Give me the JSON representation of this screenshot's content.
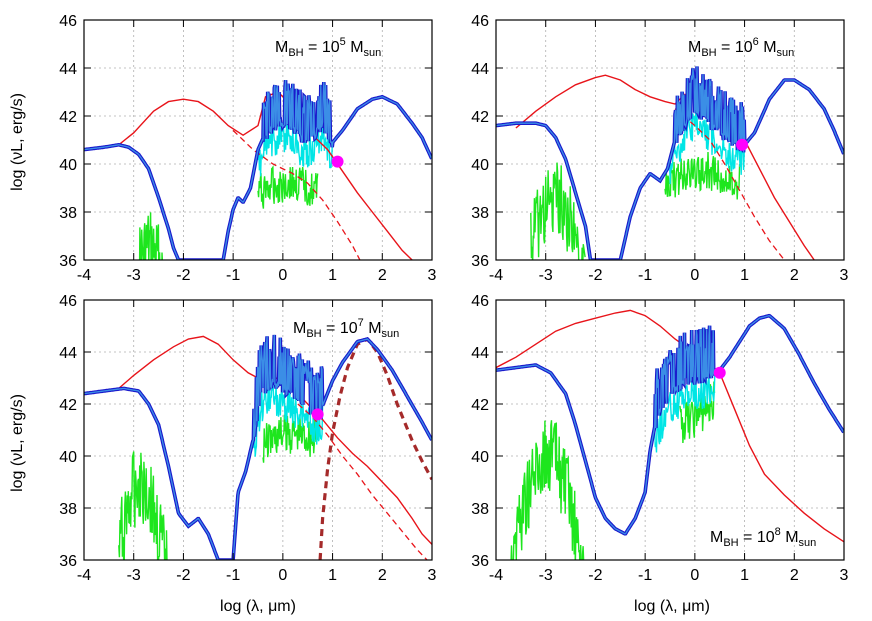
{
  "figure": {
    "ylabel": "log (νL, erg/s)",
    "xlabel": "log (λ, μm)"
  },
  "chart_data": [
    {
      "type": "line",
      "annotation": {
        "base": "M",
        "sub": "BH",
        "mid": " = 10",
        "sup": "5",
        "tail": " M",
        "sub2": "sun"
      },
      "xlim": [
        -4,
        3
      ],
      "ylim": [
        36,
        46
      ],
      "xticks": [
        -4,
        -3,
        -2,
        -1,
        0,
        1,
        2,
        3
      ],
      "yticks": [
        36,
        38,
        40,
        42,
        44,
        46
      ],
      "grid": true,
      "colors": {
        "total_dark": "#1a1acc",
        "total_light": "#3b8ee6",
        "cyan": "#00e5e5",
        "green": "#1ee61e",
        "red": "#e8141a",
        "magenta": "#ff00ff"
      },
      "red_solid": [
        [
          -3.3,
          40.8
        ],
        [
          -3.0,
          41.3
        ],
        [
          -2.6,
          42.2
        ],
        [
          -2.3,
          42.6
        ],
        [
          -2.0,
          42.7
        ],
        [
          -1.7,
          42.6
        ],
        [
          -1.4,
          42.2
        ],
        [
          -1.1,
          41.6
        ],
        [
          -0.8,
          41.2
        ],
        [
          -0.5,
          41.6
        ],
        [
          -0.35,
          42.8
        ],
        [
          -0.1,
          43.0
        ],
        [
          0.1,
          42.6
        ],
        [
          0.3,
          41.9
        ],
        [
          0.6,
          41.2
        ],
        [
          0.9,
          40.6
        ],
        [
          1.2,
          39.7
        ],
        [
          1.5,
          38.8
        ],
        [
          1.8,
          38.0
        ],
        [
          2.1,
          37.2
        ],
        [
          2.4,
          36.4
        ],
        [
          2.6,
          36.0
        ]
      ],
      "red_dashed": [
        [
          -1.0,
          41.4
        ],
        [
          -0.6,
          40.6
        ],
        [
          -0.2,
          40.0
        ],
        [
          0.2,
          39.6
        ],
        [
          0.5,
          39.2
        ],
        [
          0.8,
          38.5
        ],
        [
          1.1,
          37.6
        ],
        [
          1.4,
          36.6
        ],
        [
          1.55,
          36.0
        ]
      ],
      "total": [
        [
          -4.0,
          40.6
        ],
        [
          -3.6,
          40.7
        ],
        [
          -3.3,
          40.8
        ],
        [
          -3.1,
          40.7
        ],
        [
          -2.9,
          40.4
        ],
        [
          -2.7,
          39.8
        ],
        [
          -2.5,
          38.6
        ],
        [
          -2.3,
          37.3
        ],
        [
          -2.2,
          36.5
        ],
        [
          -2.1,
          36.0
        ],
        [
          -1.2,
          36.0
        ],
        [
          -1.1,
          37.2
        ],
        [
          -1.0,
          38.1
        ],
        [
          -0.9,
          38.6
        ],
        [
          -0.8,
          38.4
        ],
        [
          -0.65,
          39.0
        ],
        [
          -0.5,
          40.6
        ],
        [
          -0.35,
          41.3
        ],
        [
          -0.2,
          41.7
        ],
        [
          0.0,
          41.9
        ],
        [
          0.2,
          41.7
        ],
        [
          0.4,
          41.2
        ],
        [
          0.6,
          41.3
        ],
        [
          0.8,
          41.8
        ],
        [
          1.0,
          40.9
        ],
        [
          1.2,
          41.4
        ],
        [
          1.5,
          42.3
        ],
        [
          1.8,
          42.7
        ],
        [
          2.0,
          42.8
        ],
        [
          2.3,
          42.5
        ],
        [
          2.6,
          41.7
        ],
        [
          2.8,
          41.1
        ],
        [
          3.0,
          40.2
        ]
      ],
      "total_spiky_range": [
        -0.4,
        1.0
      ],
      "cyan_spiky_range": [
        -0.5,
        1.0
      ],
      "green": [
        [
          -2.9,
          37.5
        ],
        [
          -2.7,
          38.2
        ],
        [
          -2.5,
          37.6
        ],
        [
          -2.4,
          37.0
        ],
        [
          -2.35,
          36.0
        ]
      ],
      "green_spiky_range": [
        -3.1,
        -2.35
      ],
      "green_hump": [
        [
          -0.5,
          39.6
        ],
        [
          -0.2,
          39.9
        ],
        [
          0.1,
          40.0
        ],
        [
          0.4,
          39.9
        ],
        [
          0.7,
          39.6
        ]
      ],
      "dot": [
        1.1,
        40.1
      ]
    },
    {
      "type": "line",
      "annotation": {
        "base": "M",
        "sub": "BH",
        "mid": " = 10",
        "sup": "6",
        "tail": " M",
        "sub2": "sun"
      },
      "xlim": [
        -4,
        3
      ],
      "ylim": [
        36,
        46
      ],
      "xticks": [
        -4,
        -3,
        -2,
        -1,
        0,
        1,
        2,
        3
      ],
      "yticks": [
        36,
        38,
        40,
        42,
        44,
        46
      ],
      "grid": true,
      "colors": {
        "total_dark": "#1a1acc",
        "total_light": "#3b8ee6",
        "cyan": "#00e5e5",
        "green": "#1ee61e",
        "red": "#e8141a",
        "magenta": "#ff00ff"
      },
      "red_solid": [
        [
          -3.6,
          41.5
        ],
        [
          -3.2,
          42.2
        ],
        [
          -2.8,
          42.8
        ],
        [
          -2.4,
          43.3
        ],
        [
          -2.0,
          43.6
        ],
        [
          -1.8,
          43.7
        ],
        [
          -1.5,
          43.5
        ],
        [
          -1.2,
          43.1
        ],
        [
          -0.9,
          42.8
        ],
        [
          -0.6,
          42.6
        ],
        [
          -0.4,
          42.5
        ],
        [
          -0.2,
          42.9
        ],
        [
          0.0,
          42.7
        ],
        [
          0.3,
          42.3
        ],
        [
          0.6,
          41.8
        ],
        [
          1.0,
          41.0
        ],
        [
          1.3,
          39.8
        ],
        [
          1.6,
          38.6
        ],
        [
          1.9,
          37.6
        ],
        [
          2.2,
          36.6
        ],
        [
          2.4,
          36.0
        ]
      ],
      "red_dashed": [
        [
          -0.4,
          42.3
        ],
        [
          0.0,
          41.6
        ],
        [
          0.3,
          41.0
        ],
        [
          0.6,
          40.0
        ],
        [
          0.9,
          38.9
        ],
        [
          1.2,
          37.8
        ],
        [
          1.5,
          36.8
        ],
        [
          1.8,
          36.0
        ]
      ],
      "total": [
        [
          -4.0,
          41.6
        ],
        [
          -3.6,
          41.7
        ],
        [
          -3.2,
          41.7
        ],
        [
          -3.0,
          41.6
        ],
        [
          -2.8,
          41.1
        ],
        [
          -2.6,
          40.2
        ],
        [
          -2.4,
          38.8
        ],
        [
          -2.2,
          37.4
        ],
        [
          -2.1,
          36.0
        ],
        [
          -1.5,
          36.0
        ],
        [
          -1.3,
          37.8
        ],
        [
          -1.1,
          39.0
        ],
        [
          -0.9,
          39.6
        ],
        [
          -0.7,
          39.3
        ],
        [
          -0.55,
          39.8
        ],
        [
          -0.4,
          41.0
        ],
        [
          -0.2,
          41.9
        ],
        [
          0.0,
          42.4
        ],
        [
          0.3,
          41.8
        ],
        [
          0.6,
          41.3
        ],
        [
          0.8,
          41.0
        ],
        [
          1.0,
          40.8
        ],
        [
          1.2,
          41.3
        ],
        [
          1.5,
          42.7
        ],
        [
          1.8,
          43.5
        ],
        [
          2.0,
          43.5
        ],
        [
          2.3,
          43.1
        ],
        [
          2.6,
          42.3
        ],
        [
          2.8,
          41.4
        ],
        [
          3.0,
          40.4
        ]
      ],
      "total_spiky_range": [
        -0.4,
        1.0
      ],
      "cyan_spiky_range": [
        -0.5,
        1.0
      ],
      "green": [
        [
          -3.3,
          38.5
        ],
        [
          -3.0,
          39.8
        ],
        [
          -2.7,
          40.2
        ],
        [
          -2.5,
          39.2
        ],
        [
          -2.3,
          37.5
        ],
        [
          -2.2,
          36.0
        ]
      ],
      "green_spiky_range": [
        -3.3,
        -2.25
      ],
      "green_hump": [
        [
          -0.6,
          40.0
        ],
        [
          -0.3,
          40.3
        ],
        [
          0.0,
          40.5
        ],
        [
          0.3,
          40.5
        ],
        [
          0.6,
          40.3
        ],
        [
          0.9,
          40.0
        ]
      ],
      "dot": [
        0.95,
        40.8
      ]
    },
    {
      "type": "line",
      "annotation": {
        "base": "M",
        "sub": "BH",
        "mid": " = 10",
        "sup": "7",
        "tail": " M",
        "sub2": "sun"
      },
      "xlim": [
        -4,
        3
      ],
      "ylim": [
        36,
        46
      ],
      "xticks": [
        -4,
        -3,
        -2,
        -1,
        0,
        1,
        2,
        3
      ],
      "yticks": [
        36,
        38,
        40,
        42,
        44,
        46
      ],
      "grid": true,
      "colors": {
        "total_dark": "#1a1acc",
        "total_light": "#3b8ee6",
        "cyan": "#00e5e5",
        "green": "#1ee61e",
        "red": "#e8141a",
        "magenta": "#ff00ff",
        "brown": "#a52a2a"
      },
      "red_solid": [
        [
          -3.3,
          42.6
        ],
        [
          -3.0,
          43.1
        ],
        [
          -2.6,
          43.7
        ],
        [
          -2.2,
          44.2
        ],
        [
          -1.9,
          44.5
        ],
        [
          -1.6,
          44.6
        ],
        [
          -1.3,
          44.3
        ],
        [
          -1.0,
          43.7
        ],
        [
          -0.7,
          43.2
        ],
        [
          -0.4,
          42.9
        ],
        [
          -0.1,
          43.0
        ],
        [
          0.2,
          42.6
        ],
        [
          0.5,
          42.0
        ],
        [
          0.8,
          41.4
        ],
        [
          1.1,
          40.7
        ],
        [
          1.4,
          40.1
        ],
        [
          1.7,
          39.6
        ],
        [
          2.0,
          39.0
        ],
        [
          2.3,
          38.4
        ],
        [
          2.6,
          37.6
        ],
        [
          2.8,
          37.0
        ],
        [
          3.0,
          36.6
        ]
      ],
      "red_dashed": [
        [
          0.3,
          42.0
        ],
        [
          0.6,
          41.5
        ],
        [
          0.9,
          40.8
        ],
        [
          1.2,
          40.0
        ],
        [
          1.5,
          39.3
        ],
        [
          1.8,
          38.5
        ],
        [
          2.1,
          37.8
        ],
        [
          2.4,
          37.1
        ],
        [
          2.7,
          36.4
        ],
        [
          2.9,
          36.0
        ]
      ],
      "brown_dashed": [
        [
          0.75,
          36.0
        ],
        [
          0.8,
          37.6
        ],
        [
          0.9,
          39.5
        ],
        [
          1.0,
          40.9
        ],
        [
          1.15,
          42.3
        ],
        [
          1.3,
          43.4
        ],
        [
          1.5,
          44.3
        ],
        [
          1.7,
          44.5
        ],
        [
          1.9,
          44.0
        ],
        [
          2.1,
          43.1
        ],
        [
          2.3,
          42.0
        ],
        [
          2.6,
          40.6
        ],
        [
          2.8,
          39.8
        ],
        [
          3.0,
          39.1
        ]
      ],
      "total": [
        [
          -4.0,
          42.4
        ],
        [
          -3.6,
          42.5
        ],
        [
          -3.2,
          42.6
        ],
        [
          -2.9,
          42.5
        ],
        [
          -2.7,
          42.0
        ],
        [
          -2.5,
          41.2
        ],
        [
          -2.3,
          39.6
        ],
        [
          -2.1,
          37.8
        ],
        [
          -1.9,
          37.3
        ],
        [
          -1.7,
          37.6
        ],
        [
          -1.5,
          37.0
        ],
        [
          -1.3,
          36.0
        ],
        [
          -1.0,
          36.0
        ],
        [
          -0.9,
          38.6
        ],
        [
          -0.75,
          39.4
        ],
        [
          -0.6,
          40.6
        ],
        [
          -0.45,
          42.6
        ],
        [
          -0.2,
          43.0
        ],
        [
          0.0,
          42.8
        ],
        [
          0.3,
          42.3
        ],
        [
          0.6,
          41.8
        ],
        [
          0.75,
          41.7
        ],
        [
          1.0,
          42.9
        ],
        [
          1.2,
          43.6
        ],
        [
          1.5,
          44.4
        ],
        [
          1.7,
          44.5
        ],
        [
          1.9,
          44.1
        ],
        [
          2.2,
          43.3
        ],
        [
          2.5,
          42.3
        ],
        [
          2.8,
          41.3
        ],
        [
          3.0,
          40.6
        ]
      ],
      "total_spiky_range": [
        -0.6,
        0.8
      ],
      "cyan_spiky_range": [
        -0.6,
        0.8
      ],
      "green": [
        [
          -3.3,
          38.0
        ],
        [
          -3.1,
          39.7
        ],
        [
          -2.9,
          40.8
        ],
        [
          -2.7,
          40.2
        ],
        [
          -2.5,
          38.6
        ],
        [
          -2.3,
          37.0
        ],
        [
          -2.2,
          36.0
        ]
      ],
      "green_spiky_range": [
        -3.3,
        -2.2
      ],
      "green_hump": [
        [
          -0.4,
          41.3
        ],
        [
          -0.1,
          41.6
        ],
        [
          0.2,
          41.7
        ],
        [
          0.5,
          41.6
        ],
        [
          0.7,
          41.4
        ]
      ],
      "dot": [
        0.7,
        41.6
      ]
    },
    {
      "type": "line",
      "annotation": {
        "base": "M",
        "sub": "BH",
        "mid": " = 10",
        "sup": "8",
        "tail": " M",
        "sub2": "sun"
      },
      "xlim": [
        -4,
        3
      ],
      "ylim": [
        36,
        46
      ],
      "xticks": [
        -4,
        -3,
        -2,
        -1,
        0,
        1,
        2,
        3
      ],
      "yticks": [
        36,
        38,
        40,
        42,
        44,
        46
      ],
      "grid": true,
      "colors": {
        "total_dark": "#1a1acc",
        "total_light": "#3b8ee6",
        "cyan": "#00e5e5",
        "green": "#1ee61e",
        "red": "#e8141a",
        "magenta": "#ff00ff"
      },
      "red_solid": [
        [
          -4.0,
          43.4
        ],
        [
          -3.6,
          43.8
        ],
        [
          -3.2,
          44.3
        ],
        [
          -2.8,
          44.8
        ],
        [
          -2.4,
          45.1
        ],
        [
          -2.0,
          45.3
        ],
        [
          -1.6,
          45.5
        ],
        [
          -1.3,
          45.6
        ],
        [
          -1.0,
          45.4
        ],
        [
          -0.7,
          45.0
        ],
        [
          -0.4,
          44.5
        ],
        [
          -0.1,
          44.1
        ],
        [
          0.2,
          43.7
        ],
        [
          0.5,
          43.2
        ],
        [
          0.8,
          41.8
        ],
        [
          1.1,
          40.4
        ],
        [
          1.4,
          39.3
        ],
        [
          1.8,
          38.5
        ],
        [
          2.2,
          37.8
        ],
        [
          2.6,
          37.2
        ],
        [
          3.0,
          36.7
        ]
      ],
      "total": [
        [
          -4.0,
          43.3
        ],
        [
          -3.6,
          43.4
        ],
        [
          -3.2,
          43.5
        ],
        [
          -2.9,
          43.2
        ],
        [
          -2.6,
          42.4
        ],
        [
          -2.4,
          41.2
        ],
        [
          -2.2,
          39.8
        ],
        [
          -2.0,
          38.4
        ],
        [
          -1.8,
          37.6
        ],
        [
          -1.6,
          37.2
        ],
        [
          -1.4,
          37.0
        ],
        [
          -1.2,
          37.6
        ],
        [
          -1.0,
          38.6
        ],
        [
          -0.9,
          40.2
        ],
        [
          -0.75,
          41.7
        ],
        [
          -0.5,
          42.6
        ],
        [
          -0.2,
          43.0
        ],
        [
          0.1,
          43.1
        ],
        [
          0.3,
          43.3
        ],
        [
          0.5,
          43.3
        ],
        [
          0.7,
          43.8
        ],
        [
          0.9,
          44.4
        ],
        [
          1.1,
          45.0
        ],
        [
          1.3,
          45.3
        ],
        [
          1.5,
          45.4
        ],
        [
          1.8,
          44.9
        ],
        [
          2.1,
          43.9
        ],
        [
          2.4,
          42.8
        ],
        [
          2.7,
          41.8
        ],
        [
          3.0,
          40.9
        ]
      ],
      "total_spiky_range": [
        -0.8,
        0.4
      ],
      "cyan_spiky_range": [
        -0.8,
        0.4
      ],
      "green": [
        [
          -3.7,
          38.0
        ],
        [
          -3.4,
          40.0
        ],
        [
          -3.1,
          41.4
        ],
        [
          -2.9,
          41.8
        ],
        [
          -2.7,
          41.0
        ],
        [
          -2.5,
          39.6
        ],
        [
          -2.3,
          37.4
        ],
        [
          -2.15,
          36.0
        ]
      ],
      "green_spiky_range": [
        -3.8,
        -2.15
      ],
      "green_hump": [
        [
          -0.3,
          42.0
        ],
        [
          0.0,
          42.3
        ],
        [
          0.2,
          42.6
        ],
        [
          0.4,
          42.9
        ]
      ],
      "dot": [
        0.5,
        43.2
      ]
    }
  ]
}
